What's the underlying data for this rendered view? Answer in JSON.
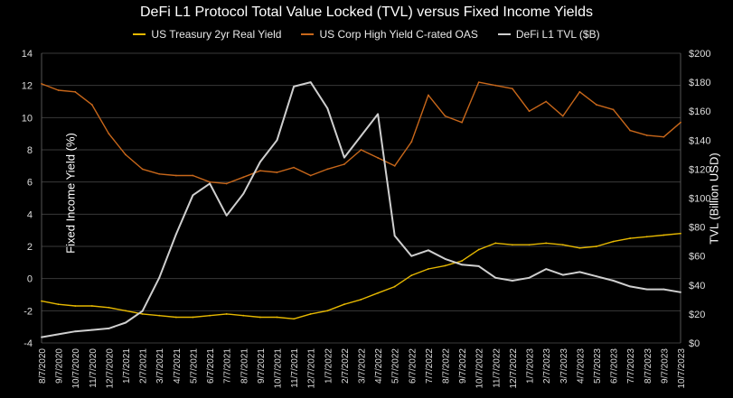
{
  "chart_data": {
    "type": "line",
    "title": "DeFi L1 Protocol Total Value Locked (TVL) versus Fixed Income Yields",
    "ylabel": "Fixed Income Yield (%)",
    "y2label": "TVL (Billion USD)",
    "ylim": [
      -4,
      14
    ],
    "y2lim": [
      0,
      200
    ],
    "yticks": [
      -4,
      -2,
      0,
      2,
      4,
      6,
      8,
      10,
      12,
      14
    ],
    "y2ticks": [
      "$0",
      "$20",
      "$40",
      "$60",
      "$80",
      "$100",
      "$120",
      "$140",
      "$160",
      "$180",
      "$200"
    ],
    "legend_position": "top-center",
    "x_ticks": [
      "8/7/2020",
      "9/7/2020",
      "10/7/2020",
      "11/7/2020",
      "12/7/2020",
      "1/7/2021",
      "2/7/2021",
      "3/7/2021",
      "4/7/2021",
      "5/7/2021",
      "6/7/2021",
      "7/7/2021",
      "8/7/2021",
      "9/7/2021",
      "10/7/2021",
      "11/7/2021",
      "12/7/2021",
      "1/7/2022",
      "2/7/2022",
      "3/7/2022",
      "4/7/2022",
      "5/7/2022",
      "6/7/2022",
      "7/7/2022",
      "8/7/2022",
      "9/7/2022",
      "10/7/2022",
      "11/7/2022",
      "12/7/2022",
      "1/7/2023",
      "2/7/2023",
      "3/7/2023",
      "4/7/2023",
      "5/7/2023",
      "6/7/2023",
      "7/7/2023",
      "8/7/2023",
      "9/7/2023",
      "10/7/2023"
    ],
    "series": [
      {
        "name": "US Treasury 2yr Real Yield",
        "axis": "left",
        "color": "#e6b800",
        "values": [
          -1.4,
          -1.6,
          -1.7,
          -1.7,
          -1.8,
          -2.0,
          -2.2,
          -2.3,
          -2.4,
          -2.4,
          -2.3,
          -2.2,
          -2.3,
          -2.4,
          -2.4,
          -2.5,
          -2.2,
          -2.0,
          -1.6,
          -1.3,
          -0.9,
          -0.5,
          0.2,
          0.6,
          0.8,
          1.1,
          1.8,
          2.2,
          2.1,
          2.1,
          2.2,
          2.1,
          1.9,
          2.0,
          2.3,
          2.5,
          2.6,
          2.7,
          2.8
        ]
      },
      {
        "name": "US Corp High Yield C-rated OAS",
        "axis": "left",
        "color": "#c8671a",
        "values": [
          12.1,
          11.7,
          11.6,
          10.8,
          9.0,
          7.7,
          6.8,
          6.5,
          6.4,
          6.4,
          6.0,
          5.9,
          6.3,
          6.7,
          6.6,
          6.9,
          6.4,
          6.8,
          7.1,
          8.0,
          7.5,
          7.0,
          8.5,
          11.4,
          10.1,
          9.7,
          12.2,
          12.0,
          11.8,
          10.4,
          11.0,
          10.1,
          11.6,
          10.8,
          10.5,
          9.2,
          8.9,
          8.8,
          9.7
        ]
      },
      {
        "name": "DeFi L1 TVL ($B)",
        "axis": "right",
        "color": "#cfcfcf",
        "values": [
          4,
          6,
          8,
          9,
          10,
          14,
          22,
          45,
          75,
          102,
          110,
          88,
          103,
          125,
          140,
          177,
          180,
          162,
          128,
          143,
          158,
          74,
          60,
          64,
          58,
          54,
          53,
          45,
          43,
          45,
          51,
          47,
          49,
          46,
          43,
          39,
          37,
          37,
          35
        ]
      }
    ]
  }
}
